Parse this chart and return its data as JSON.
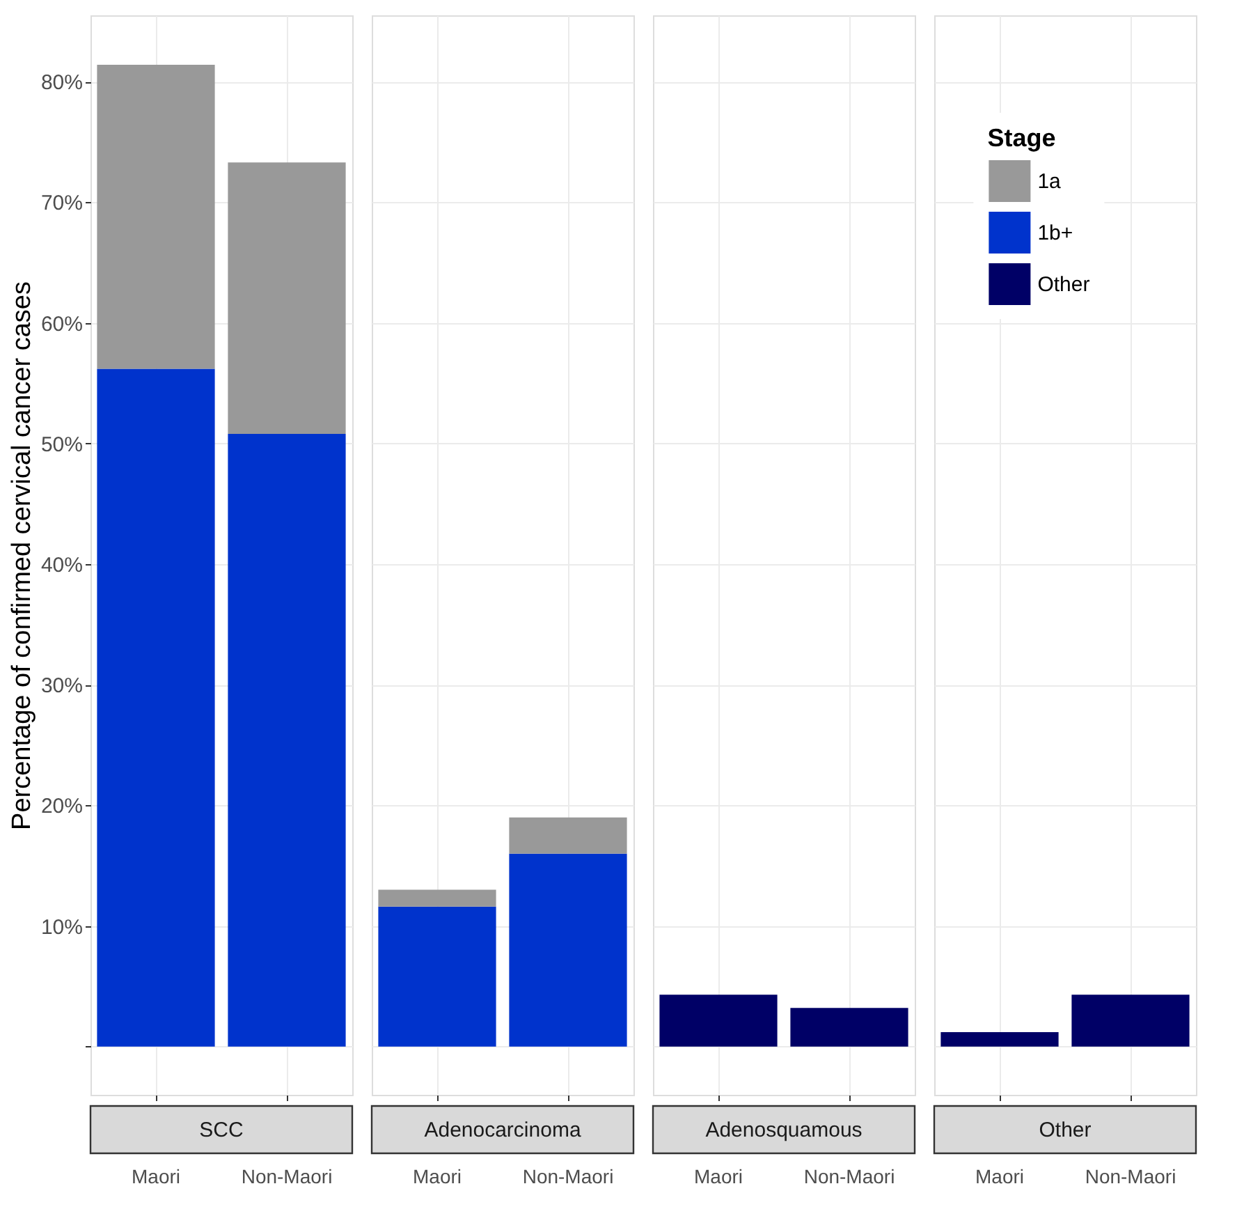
{
  "chart_data": [
    {
      "type": "bar",
      "title": "SCC",
      "ylabel": "Percentage of confirmed cervical cancer cases",
      "categories": [
        "Maori",
        "Non-Maori"
      ],
      "stacked": true,
      "grid": true,
      "ylim": [
        -4,
        85.5
      ],
      "yticks": [
        {
          "value": 0,
          "label": null
        },
        {
          "value": 10,
          "label": "10%"
        },
        {
          "value": 20,
          "label": "20%"
        },
        {
          "value": 30,
          "label": "30%"
        },
        {
          "value": 40,
          "label": "40%"
        },
        {
          "value": 50,
          "label": "50%"
        },
        {
          "value": 60,
          "label": "60%"
        },
        {
          "value": 70,
          "label": "70%"
        },
        {
          "value": 80,
          "label": "80%"
        }
      ],
      "series": [
        {
          "color": "#0033cc",
          "values": [
            56.2,
            50.8
          ]
        },
        {
          "color": "#999999",
          "values": [
            25.2,
            22.5
          ]
        }
      ]
    },
    {
      "type": "bar",
      "title": "Adenocarcinoma",
      "categories": [
        "Maori",
        "Non-Maori"
      ],
      "stacked": true,
      "grid": true,
      "tick_labels": "x",
      "ylim": [
        -4,
        85.5
      ],
      "yticks": [
        {
          "value": 0,
          "label": null
        },
        {
          "value": 10,
          "label": null
        },
        {
          "value": 20,
          "label": null
        },
        {
          "value": 30,
          "label": null
        },
        {
          "value": 40,
          "label": null
        },
        {
          "value": 50,
          "label": null
        },
        {
          "value": 60,
          "label": null
        },
        {
          "value": 70,
          "label": null
        },
        {
          "value": 80,
          "label": null
        }
      ],
      "series": [
        {
          "color": "#0033cc",
          "values": [
            11.6,
            16.0
          ]
        },
        {
          "color": "#999999",
          "values": [
            1.4,
            3.0
          ]
        }
      ]
    },
    {
      "type": "bar",
      "title": "Adenosquamous",
      "categories": [
        "Maori",
        "Non-Maori"
      ],
      "stacked": true,
      "grid": true,
      "tick_labels": "x",
      "ylim": [
        -4,
        85.5
      ],
      "yticks": [
        {
          "value": 0,
          "label": null
        },
        {
          "value": 10,
          "label": null
        },
        {
          "value": 20,
          "label": null
        },
        {
          "value": 30,
          "label": null
        },
        {
          "value": 40,
          "label": null
        },
        {
          "value": 50,
          "label": null
        },
        {
          "value": 60,
          "label": null
        },
        {
          "value": 70,
          "label": null
        },
        {
          "value": 80,
          "label": null
        }
      ],
      "series": [
        {
          "color": "#000066",
          "values": [
            4.3,
            3.2
          ]
        }
      ]
    },
    {
      "type": "bar",
      "title": "Other",
      "legend_title": "Stage",
      "categories": [
        "Maori",
        "Non-Maori"
      ],
      "stacked": true,
      "grid": true,
      "legend": "top left",
      "tick_labels": "x",
      "ylim": [
        -4,
        85.5
      ],
      "yticks": [
        {
          "value": 0,
          "label": null
        },
        {
          "value": 10,
          "label": null
        },
        {
          "value": 20,
          "label": null
        },
        {
          "value": 30,
          "label": null
        },
        {
          "value": 40,
          "label": null
        },
        {
          "value": 50,
          "label": null
        },
        {
          "value": 60,
          "label": null
        },
        {
          "value": 70,
          "label": null
        },
        {
          "value": 80,
          "label": null
        }
      ],
      "series": [
        {
          "name": "1a",
          "color": "#999999",
          "values": [
            null,
            null
          ]
        },
        {
          "name": "1b+",
          "color": "#0033cc",
          "values": [
            null,
            null
          ]
        },
        {
          "name": "Other",
          "color": "#000066",
          "values": [
            1.2,
            4.3
          ]
        }
      ]
    }
  ]
}
